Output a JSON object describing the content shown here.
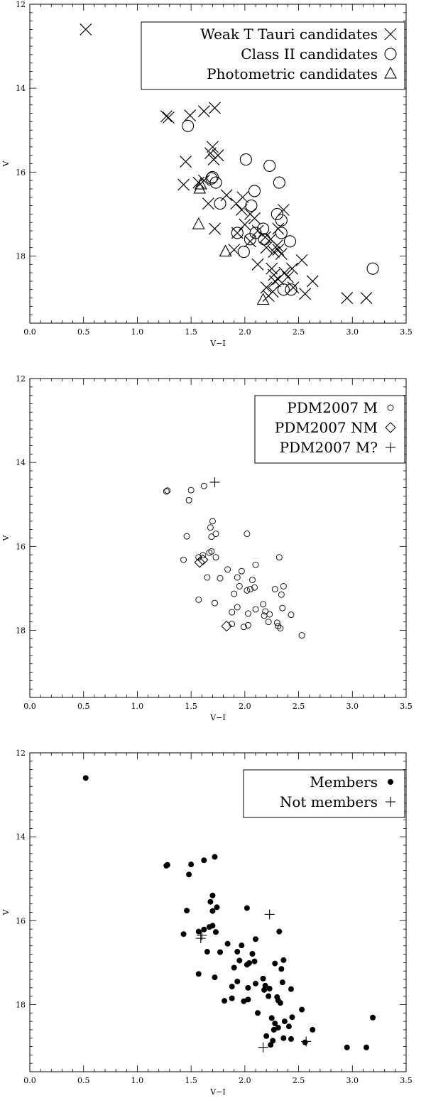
{
  "chart_data": [
    {
      "type": "scatter",
      "xlabel": "V−I",
      "ylabel": "V",
      "xlim": [
        0.0,
        3.5
      ],
      "ylim": [
        19.6,
        12.0
      ],
      "y_inverted": true,
      "xticks": [
        "0.0",
        "0.5",
        "1.0",
        "1.5",
        "2.0",
        "2.5",
        "3.0",
        "3.5"
      ],
      "xtick_values": [
        0,
        0.5,
        1,
        1.5,
        2,
        2.5,
        3,
        3.5
      ],
      "yticks": [
        "12",
        "14",
        "16",
        "18"
      ],
      "ytick_values": [
        12,
        14,
        16,
        18
      ],
      "legend_position": "top-right",
      "series": [
        {
          "name": "Weak T Tauri candidates",
          "marker": "x",
          "points": [
            [
              0.52,
              12.6
            ],
            [
              1.27,
              14.67
            ],
            [
              1.29,
              14.7
            ],
            [
              1.49,
              14.65
            ],
            [
              1.62,
              14.55
            ],
            [
              1.72,
              14.47
            ],
            [
              1.45,
              15.75
            ],
            [
              1.7,
              15.4
            ],
            [
              1.68,
              15.55
            ],
            [
              1.71,
              15.7
            ],
            [
              1.75,
              15.6
            ],
            [
              1.43,
              16.3
            ],
            [
              1.57,
              16.25
            ],
            [
              1.62,
              16.2
            ],
            [
              1.66,
              16.75
            ],
            [
              1.72,
              17.35
            ],
            [
              1.83,
              16.55
            ],
            [
              1.92,
              16.75
            ],
            [
              1.97,
              16.9
            ],
            [
              2.05,
              17.0
            ],
            [
              2.09,
              17.1
            ],
            [
              2.0,
              17.25
            ],
            [
              1.98,
              16.6
            ],
            [
              1.93,
              17.45
            ],
            [
              1.9,
              17.85
            ],
            [
              2.05,
              17.65
            ],
            [
              2.12,
              17.4
            ],
            [
              2.19,
              17.55
            ],
            [
              2.2,
              17.8
            ],
            [
              2.24,
              17.6
            ],
            [
              2.27,
              17.9
            ],
            [
              2.3,
              17.75
            ],
            [
              2.31,
              17.85
            ],
            [
              2.34,
              17.95
            ],
            [
              2.36,
              16.9
            ],
            [
              2.31,
              17.35
            ],
            [
              2.12,
              18.2
            ],
            [
              2.25,
              18.3
            ],
            [
              2.27,
              18.45
            ],
            [
              2.28,
              18.6
            ],
            [
              2.31,
              18.55
            ],
            [
              2.37,
              18.4
            ],
            [
              2.4,
              18.5
            ],
            [
              2.44,
              18.3
            ],
            [
              2.53,
              18.1
            ],
            [
              2.2,
              18.75
            ],
            [
              2.26,
              18.85
            ],
            [
              2.45,
              18.75
            ],
            [
              2.56,
              18.9
            ],
            [
              2.63,
              18.6
            ],
            [
              2.22,
              18.95
            ],
            [
              2.95,
              19.0
            ],
            [
              3.13,
              19.0
            ]
          ]
        },
        {
          "name": "Class II candidates",
          "marker": "circle",
          "points": [
            [
              1.47,
              14.9
            ],
            [
              1.69,
              16.15
            ],
            [
              1.7,
              16.12
            ],
            [
              1.73,
              16.25
            ],
            [
              1.77,
              16.75
            ],
            [
              2.01,
              15.7
            ],
            [
              2.23,
              15.85
            ],
            [
              2.32,
              16.25
            ],
            [
              2.09,
              16.45
            ],
            [
              2.06,
              16.8
            ],
            [
              2.34,
              17.15
            ],
            [
              2.3,
              17.0
            ],
            [
              1.93,
              17.45
            ],
            [
              2.05,
              17.6
            ],
            [
              2.1,
              17.45
            ],
            [
              2.17,
              17.35
            ],
            [
              2.18,
              17.6
            ],
            [
              2.34,
              17.45
            ],
            [
              2.42,
              17.65
            ],
            [
              1.99,
              17.9
            ],
            [
              2.36,
              18.8
            ],
            [
              2.43,
              18.8
            ],
            [
              3.19,
              18.3
            ]
          ]
        },
        {
          "name": "Photometric candidates",
          "marker": "triangle",
          "points": [
            [
              1.58,
              16.4
            ],
            [
              1.59,
              16.3
            ],
            [
              1.57,
              17.25
            ],
            [
              1.82,
              17.9
            ],
            [
              2.17,
              19.05
            ]
          ]
        }
      ]
    },
    {
      "type": "scatter",
      "xlabel": "V−I",
      "ylabel": "V",
      "xlim": [
        0.0,
        3.5
      ],
      "ylim": [
        19.6,
        12.0
      ],
      "y_inverted": true,
      "xticks": [
        "0.0",
        "0.5",
        "1.0",
        "1.5",
        "2.0",
        "2.5",
        "3.0",
        "3.5"
      ],
      "xtick_values": [
        0,
        0.5,
        1,
        1.5,
        2,
        2.5,
        3,
        3.5
      ],
      "yticks": [
        "12",
        "14",
        "16",
        "18"
      ],
      "ytick_values": [
        12,
        14,
        16,
        18
      ],
      "legend_position": "top-right",
      "series": [
        {
          "name": "PDM2007 M",
          "marker": "small-circle",
          "points": [
            [
              1.27,
              14.69
            ],
            [
              1.28,
              14.67
            ],
            [
              1.5,
              14.66
            ],
            [
              1.62,
              14.56
            ],
            [
              1.48,
              14.9
            ],
            [
              1.7,
              15.4
            ],
            [
              1.68,
              15.55
            ],
            [
              1.73,
              15.7
            ],
            [
              1.69,
              15.77
            ],
            [
              1.46,
              15.76
            ],
            [
              2.02,
              15.7
            ],
            [
              1.43,
              16.32
            ],
            [
              1.57,
              16.26
            ],
            [
              1.61,
              16.21
            ],
            [
              1.67,
              16.15
            ],
            [
              1.69,
              16.12
            ],
            [
              1.73,
              16.26
            ],
            [
              2.1,
              16.44
            ],
            [
              2.32,
              16.26
            ],
            [
              1.57,
              17.27
            ],
            [
              1.65,
              16.74
            ],
            [
              1.77,
              16.76
            ],
            [
              1.84,
              16.55
            ],
            [
              1.93,
              16.74
            ],
            [
              1.97,
              16.59
            ],
            [
              2.07,
              16.8
            ],
            [
              1.95,
              16.95
            ],
            [
              2.05,
              17.02
            ],
            [
              2.09,
              16.98
            ],
            [
              2.02,
              17.05
            ],
            [
              1.9,
              17.13
            ],
            [
              2.34,
              17.15
            ],
            [
              2.36,
              16.95
            ],
            [
              2.28,
              17.02
            ],
            [
              1.72,
              17.35
            ],
            [
              1.93,
              17.45
            ],
            [
              1.88,
              17.57
            ],
            [
              2.03,
              17.6
            ],
            [
              2.1,
              17.5
            ],
            [
              2.17,
              17.38
            ],
            [
              2.19,
              17.55
            ],
            [
              2.18,
              17.65
            ],
            [
              2.23,
              17.62
            ],
            [
              2.35,
              17.47
            ],
            [
              2.43,
              17.63
            ],
            [
              1.88,
              17.85
            ],
            [
              1.99,
              17.92
            ],
            [
              2.03,
              17.88
            ],
            [
              2.22,
              17.8
            ],
            [
              2.3,
              17.82
            ],
            [
              2.31,
              17.9
            ],
            [
              2.33,
              17.95
            ],
            [
              2.53,
              18.12
            ]
          ]
        },
        {
          "name": "PDM2007 NM",
          "marker": "diamond",
          "points": [
            [
              1.58,
              16.38
            ],
            [
              1.61,
              16.32
            ],
            [
              1.83,
              17.9
            ]
          ]
        },
        {
          "name": "PDM2007 M?",
          "marker": "plus",
          "points": [
            [
              1.72,
              14.47
            ]
          ]
        }
      ]
    },
    {
      "type": "scatter",
      "xlabel": "V−I",
      "ylabel": "V",
      "xlim": [
        0.0,
        3.5
      ],
      "ylim": [
        19.6,
        12.0
      ],
      "y_inverted": true,
      "xticks": [
        "0.0",
        "0.5",
        "1.0",
        "1.5",
        "2.0",
        "2.5",
        "3.0",
        "3.5"
      ],
      "xtick_values": [
        0,
        0.5,
        1,
        1.5,
        2,
        2.5,
        3,
        3.5
      ],
      "yticks": [
        "12",
        "14",
        "16",
        "18"
      ],
      "ytick_values": [
        12,
        14,
        16,
        18
      ],
      "legend_position": "top-right",
      "series": [
        {
          "name": "Members",
          "marker": "filled-circle",
          "points": [
            [
              0.52,
              12.6
            ],
            [
              1.27,
              14.69
            ],
            [
              1.28,
              14.67
            ],
            [
              1.5,
              14.66
            ],
            [
              1.62,
              14.56
            ],
            [
              1.72,
              14.48
            ],
            [
              1.48,
              14.9
            ],
            [
              1.7,
              15.4
            ],
            [
              1.68,
              15.55
            ],
            [
              1.74,
              15.68
            ],
            [
              1.7,
              15.77
            ],
            [
              1.46,
              15.76
            ],
            [
              2.02,
              15.7
            ],
            [
              1.43,
              16.32
            ],
            [
              1.57,
              16.26
            ],
            [
              1.62,
              16.21
            ],
            [
              1.67,
              16.15
            ],
            [
              1.7,
              16.12
            ],
            [
              1.73,
              16.27
            ],
            [
              2.1,
              16.44
            ],
            [
              2.32,
              16.26
            ],
            [
              1.57,
              17.27
            ],
            [
              1.65,
              16.74
            ],
            [
              1.77,
              16.75
            ],
            [
              1.84,
              16.55
            ],
            [
              1.93,
              16.74
            ],
            [
              1.97,
              16.59
            ],
            [
              2.07,
              16.79
            ],
            [
              1.95,
              16.95
            ],
            [
              2.04,
              17.01
            ],
            [
              2.09,
              16.97
            ],
            [
              2.02,
              17.05
            ],
            [
              1.9,
              17.12
            ],
            [
              2.34,
              17.15
            ],
            [
              2.36,
              16.94
            ],
            [
              2.28,
              17.02
            ],
            [
              1.72,
              17.35
            ],
            [
              1.93,
              17.45
            ],
            [
              1.88,
              17.57
            ],
            [
              2.03,
              17.6
            ],
            [
              2.1,
              17.5
            ],
            [
              2.17,
              17.38
            ],
            [
              2.19,
              17.55
            ],
            [
              2.18,
              17.65
            ],
            [
              2.23,
              17.62
            ],
            [
              2.35,
              17.47
            ],
            [
              2.43,
              17.63
            ],
            [
              1.81,
              17.91
            ],
            [
              1.88,
              17.85
            ],
            [
              1.99,
              17.92
            ],
            [
              2.03,
              17.88
            ],
            [
              2.22,
              17.8
            ],
            [
              2.3,
              17.82
            ],
            [
              2.31,
              17.9
            ],
            [
              2.33,
              17.96
            ],
            [
              2.53,
              18.12
            ],
            [
              2.12,
              18.2
            ],
            [
              2.25,
              18.32
            ],
            [
              2.28,
              18.45
            ],
            [
              2.27,
              18.6
            ],
            [
              2.31,
              18.55
            ],
            [
              2.37,
              18.4
            ],
            [
              2.41,
              18.52
            ],
            [
              2.44,
              18.3
            ],
            [
              2.2,
              18.75
            ],
            [
              2.26,
              18.86
            ],
            [
              2.36,
              18.8
            ],
            [
              2.43,
              18.82
            ],
            [
              2.56,
              18.9
            ],
            [
              2.63,
              18.6
            ],
            [
              2.24,
              18.96
            ],
            [
              2.95,
              19.02
            ],
            [
              3.13,
              19.02
            ],
            [
              3.19,
              18.31
            ]
          ]
        },
        {
          "name": "Not members",
          "marker": "plus",
          "points": [
            [
              1.59,
              16.42
            ],
            [
              1.6,
              16.35
            ],
            [
              2.23,
              15.85
            ],
            [
              2.17,
              19.02
            ],
            [
              2.57,
              18.88
            ]
          ]
        }
      ]
    }
  ]
}
